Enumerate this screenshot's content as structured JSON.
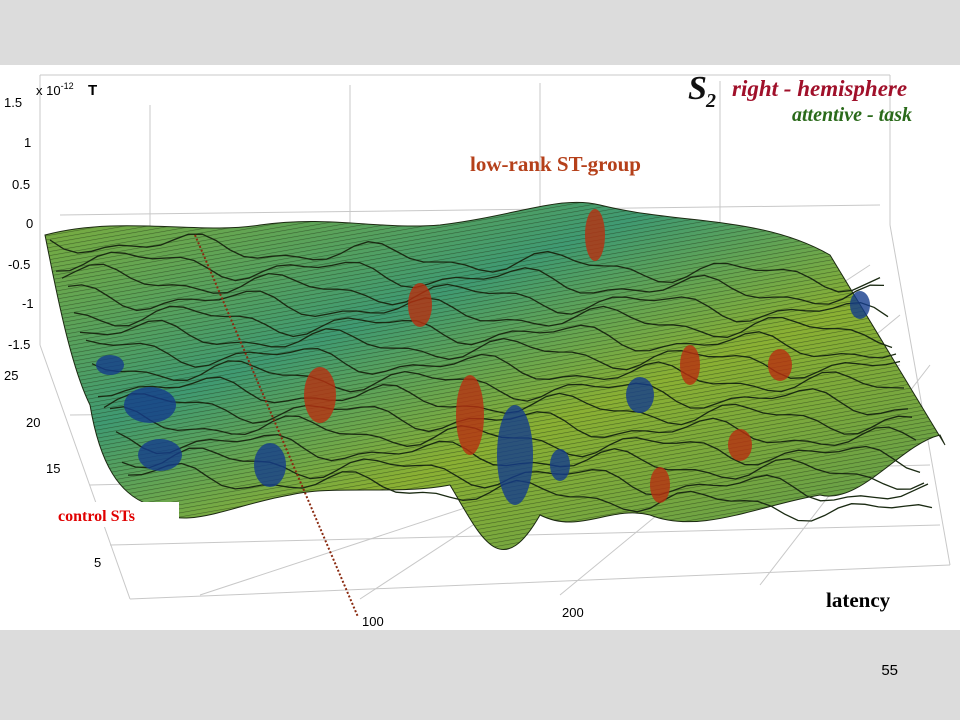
{
  "slide_number": "55",
  "chart_data": {
    "type": "surface",
    "title_s": "S",
    "title_sub": "2",
    "title_hemisphere_a": "right - ",
    "title_hemisphere_b": "hemisphere",
    "title_task": "attentive - task",
    "group_label": "low-rank  ST-group",
    "control_label": "control STs",
    "exponent_label": "x 10",
    "exponent_power": "-12",
    "unit_label": "T",
    "xlabel": "latency",
    "z_ticks": [
      "1.5",
      "1",
      "0.5",
      "0",
      "-0.5",
      "-1",
      "-1.5"
    ],
    "y_ticks": [
      "25",
      "20",
      "15",
      "5"
    ],
    "x_ticks": [
      "100",
      "200"
    ],
    "zlim": [
      -1.5,
      1.5
    ],
    "colors": {
      "high": "#b83010",
      "mid": "#6fa030",
      "low": "#143c8c",
      "group_label": "#b5401a",
      "control_label": "#e00000",
      "title_red": "#a0102a",
      "title_green": "#2a6a1a"
    }
  }
}
